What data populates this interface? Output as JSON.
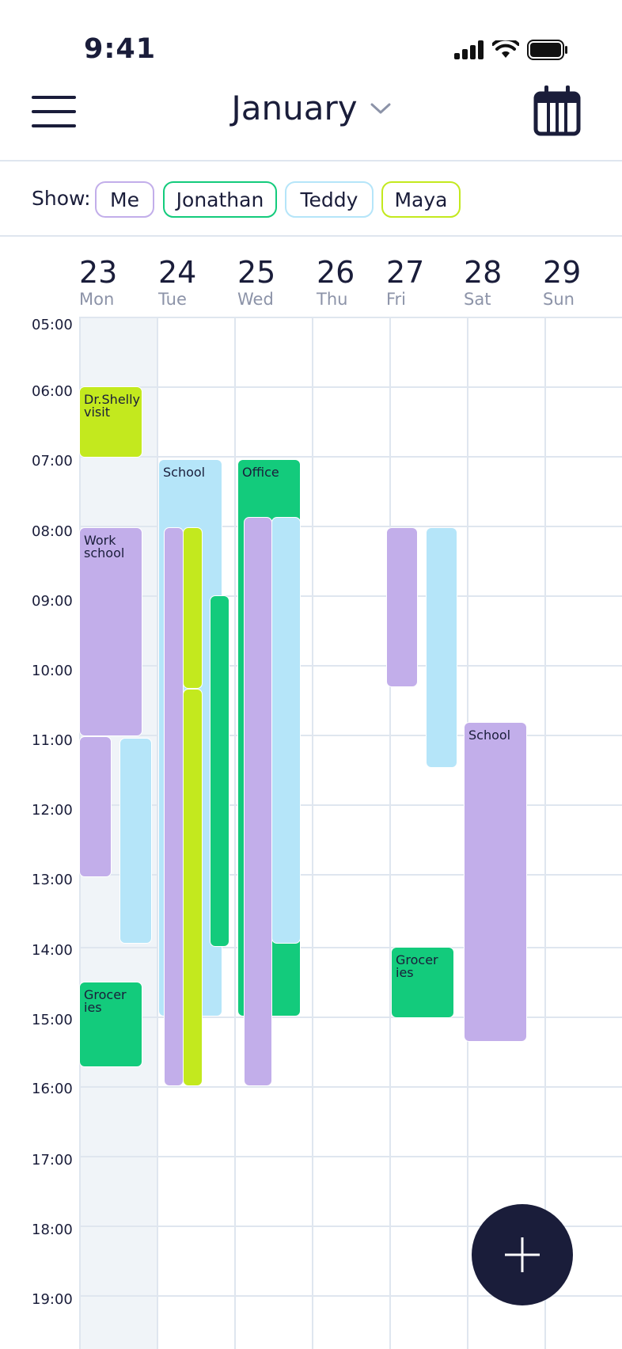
{
  "status": {
    "time": "9:41"
  },
  "header": {
    "month": "January"
  },
  "filter": {
    "label": "Show:",
    "chips": [
      {
        "label": "Me",
        "color": "#c2aeea"
      },
      {
        "label": "Jonathan",
        "color": "#13cb7c"
      },
      {
        "label": "Teddy",
        "color": "#b5e5f9"
      },
      {
        "label": "Maya",
        "color": "#c3e91e"
      }
    ]
  },
  "days": [
    {
      "num": "23",
      "name": "Mon"
    },
    {
      "num": "24",
      "name": "Tue"
    },
    {
      "num": "25",
      "name": "Wed"
    },
    {
      "num": "26",
      "name": "Thu"
    },
    {
      "num": "27",
      "name": "Fri"
    },
    {
      "num": "28",
      "name": "Sat"
    },
    {
      "num": "29",
      "name": "Sun"
    }
  ],
  "times": [
    "05:00",
    "06:00",
    "07:00",
    "08:00",
    "09:00",
    "10:00",
    "11:00",
    "12:00",
    "13:00",
    "14:00",
    "15:00",
    "16:00",
    "17:00",
    "18:00",
    "19:00"
  ],
  "events": {
    "dr_shelly": "Dr.Shelly visit",
    "work_school": "Work school",
    "groceries_mon": "Grocer ies",
    "school_tue": "School",
    "office_wed": "Office",
    "groceries_fri": "Grocer ies",
    "school_sat": "School"
  },
  "colors": {
    "me": "#c2aeea",
    "jonathan": "#13cb7c",
    "teddy": "#b5e5f9",
    "maya": "#c3e91e",
    "navy": "#1a1d3a"
  }
}
